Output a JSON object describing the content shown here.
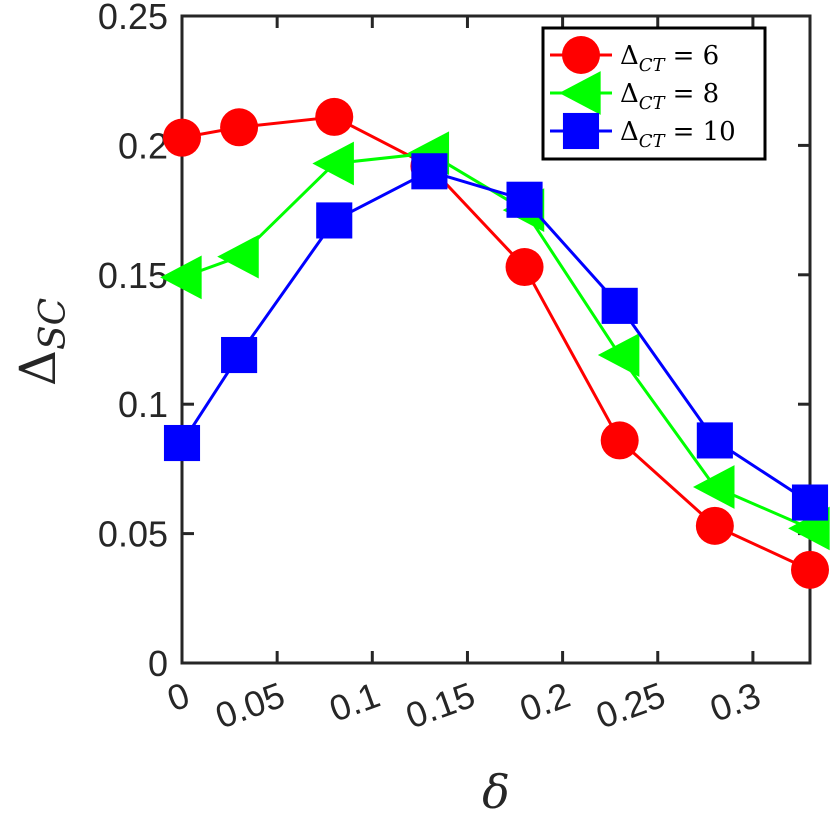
{
  "chart_data": {
    "type": "line",
    "xlabel": "δ",
    "ylabel": "Δ",
    "ylabel_sub": "SC",
    "xlim": [
      0,
      0.33
    ],
    "ylim": [
      0,
      0.25
    ],
    "x_ticks": [
      {
        "value": 0,
        "label": "0"
      },
      {
        "value": 0.05,
        "label": "0.05"
      },
      {
        "value": 0.1,
        "label": "0.1"
      },
      {
        "value": 0.15,
        "label": "0.15"
      },
      {
        "value": 0.2,
        "label": "0.2"
      },
      {
        "value": 0.25,
        "label": "0.25"
      },
      {
        "value": 0.3,
        "label": "0.3"
      }
    ],
    "y_ticks": [
      {
        "value": 0,
        "label": "0"
      },
      {
        "value": 0.05,
        "label": "0.05"
      },
      {
        "value": 0.1,
        "label": "0.1"
      },
      {
        "value": 0.15,
        "label": "0.15"
      },
      {
        "value": 0.2,
        "label": "0.2"
      },
      {
        "value": 0.25,
        "label": "0.25"
      }
    ],
    "grid": false,
    "legend_position": "top-right",
    "series": [
      {
        "name": "Δ_CT = 6",
        "legend_symbol": "Δ",
        "legend_sub": "CT",
        "legend_value": "= 6",
        "color": "#ff0000",
        "marker": "circle",
        "x": [
          0,
          0.03,
          0.08,
          0.13,
          0.18,
          0.23,
          0.28,
          0.33
        ],
        "y": [
          0.203,
          0.207,
          0.211,
          0.192,
          0.153,
          0.086,
          0.053,
          0.036
        ]
      },
      {
        "name": "Δ_CT = 8",
        "legend_symbol": "Δ",
        "legend_sub": "CT",
        "legend_value": "= 8",
        "color": "#00ff00",
        "marker": "triangle-left",
        "x": [
          0,
          0.03,
          0.08,
          0.13,
          0.18,
          0.23,
          0.28,
          0.33
        ],
        "y": [
          0.149,
          0.157,
          0.193,
          0.197,
          0.175,
          0.119,
          0.068,
          0.052
        ]
      },
      {
        "name": "Δ_CT = 10",
        "legend_symbol": "Δ",
        "legend_sub": "CT",
        "legend_value": "= 10",
        "color": "#0000ff",
        "marker": "square",
        "x": [
          0,
          0.03,
          0.08,
          0.13,
          0.18,
          0.23,
          0.28,
          0.33
        ],
        "y": [
          0.085,
          0.119,
          0.171,
          0.19,
          0.179,
          0.138,
          0.086,
          0.062
        ]
      }
    ]
  }
}
